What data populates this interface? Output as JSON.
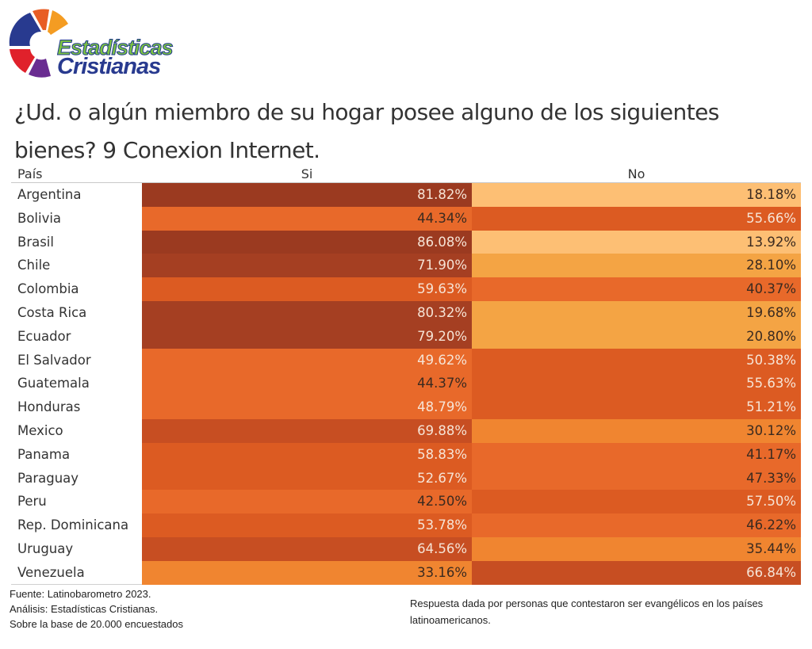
{
  "logo": {
    "line1": "Estadísticas",
    "line2": "Cristianas"
  },
  "title": "¿Ud. o algún miembro de su hogar posee alguno de los siguientes bienes? 9   Conexion Internet.",
  "colors": {
    "scale": [
      "#fdbf74",
      "#f4a444",
      "#f08530",
      "#e8692a",
      "#dc5b22",
      "#c74e22",
      "#a53f22",
      "#9b3a20"
    ]
  },
  "chart_data": {
    "type": "table",
    "title": "¿Ud. o algún miembro de su hogar posee alguno de los siguientes bienes? 9   Conexion Internet.",
    "columns": [
      "País",
      "Si",
      "No"
    ],
    "categories": [
      "Argentina",
      "Bolivia",
      "Brasil",
      "Chile",
      "Colombia",
      "Costa Rica",
      "Ecuador",
      "El Salvador",
      "Guatemala",
      "Honduras",
      "Mexico",
      "Panama",
      "Paraguay",
      "Peru",
      "Rep. Dominicana",
      "Uruguay",
      "Venezuela"
    ],
    "series": [
      {
        "name": "Si",
        "values": [
          81.82,
          44.34,
          86.08,
          71.9,
          59.63,
          80.32,
          79.2,
          49.62,
          44.37,
          48.79,
          69.88,
          58.83,
          52.67,
          42.5,
          53.78,
          64.56,
          33.16
        ],
        "labels": [
          "81.82%",
          "44.34%",
          "86.08%",
          "71.90%",
          "59.63%",
          "80.32%",
          "79.20%",
          "49.62%",
          "44.37%",
          "48.79%",
          "69.88%",
          "58.83%",
          "52.67%",
          "42.50%",
          "53.78%",
          "64.56%",
          "33.16%"
        ]
      },
      {
        "name": "No",
        "values": [
          18.18,
          55.66,
          13.92,
          28.1,
          40.37,
          19.68,
          20.8,
          50.38,
          55.63,
          51.21,
          30.12,
          41.17,
          47.33,
          57.5,
          46.22,
          35.44,
          66.84
        ],
        "labels": [
          "18.18%",
          "55.66%",
          "13.92%",
          "28.10%",
          "40.37%",
          "19.68%",
          "20.80%",
          "50.38%",
          "55.63%",
          "51.21%",
          "30.12%",
          "41.17%",
          "47.33%",
          "57.50%",
          "46.22%",
          "35.44%",
          "66.84%"
        ]
      }
    ]
  },
  "footer": {
    "source": "Fuente: Latinobarometro 2023.",
    "analysis": "Análisis: Estadísticas Cristianas.",
    "base": "Sobre la base de 20.000 encuestados",
    "note": "Respuesta dada por personas que contestaron ser evangélicos en los países latinoamericanos."
  }
}
